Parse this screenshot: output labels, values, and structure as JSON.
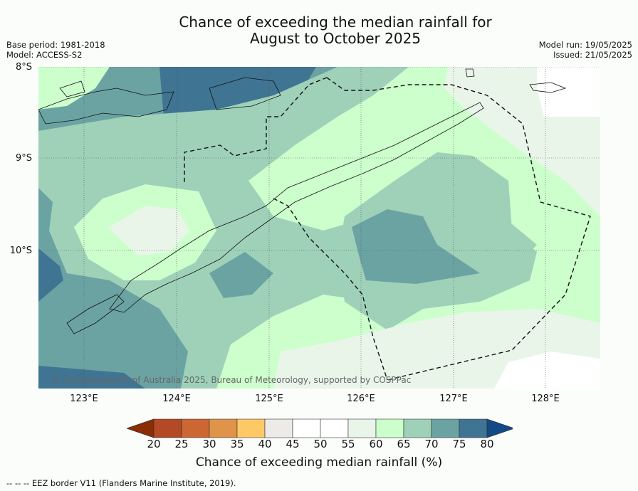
{
  "header": {
    "title_line1": "Chance of exceeding the median rainfall for",
    "title_line2": "August to October 2025",
    "base_period": "Base period: 1981-2018",
    "model": "Model: ACCESS-S2",
    "model_run": "Model run: 19/05/2025",
    "issued": "Issued: 21/05/2025"
  },
  "map": {
    "lat_labels": [
      "8°S",
      "9°S",
      "10°S"
    ],
    "lon_labels": [
      "123°E",
      "124°E",
      "125°E",
      "126°E",
      "127°E",
      "128°E"
    ],
    "copyright": "© Commonwealth of Australia 2025, Bureau of Meteorology, supported by COSPPac"
  },
  "colorbar": {
    "ticks": [
      "20",
      "25",
      "30",
      "35",
      "40",
      "45",
      "50",
      "55",
      "60",
      "65",
      "70",
      "75",
      "80"
    ],
    "colors": [
      "#8c2d04",
      "#b34a25",
      "#cc6633",
      "#e0944a",
      "#fdc967",
      "#ecebe8",
      "#ffffff",
      "#ffffff",
      "#eaf5ea",
      "#ccffcc",
      "#9ed1b8",
      "#6ba3a3",
      "#3f7493",
      "#124a87"
    ],
    "label": "Chance of exceeding median rainfall (%)"
  },
  "legend": {
    "eez_border": "--  --  -- EEZ border V11 (Flanders Marine Institute, 2019)."
  }
}
